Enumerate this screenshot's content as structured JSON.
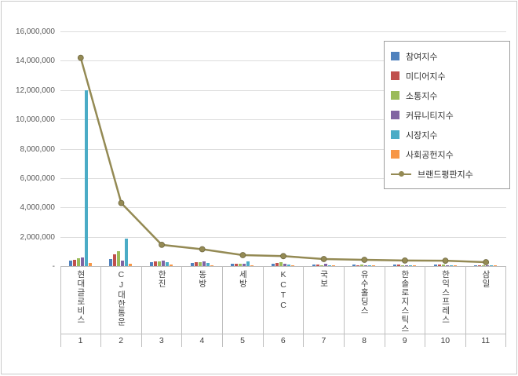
{
  "chart_data": {
    "type": "bar",
    "note": "combined clustered bar + line chart, Korean brand reputation index",
    "categories": [
      "현대글로비스",
      "CJ대한통운",
      "한진",
      "동방",
      "세방",
      "KCTC",
      "국보",
      "유수홀딩스",
      "한솔로지스틱스",
      "한익스프레스",
      "삼일"
    ],
    "ranks": [
      "1",
      "2",
      "3",
      "4",
      "5",
      "6",
      "7",
      "8",
      "9",
      "10",
      "11"
    ],
    "series": [
      {
        "name": "참여지수",
        "type": "bar",
        "color": "#4F81BD",
        "values": [
          350000,
          500000,
          250000,
          200000,
          150000,
          150000,
          100000,
          120000,
          100000,
          100000,
          80000
        ]
      },
      {
        "name": "미디어지수",
        "type": "bar",
        "color": "#C0504D",
        "values": [
          420000,
          820000,
          300000,
          250000,
          150000,
          200000,
          100000,
          80000,
          100000,
          120000,
          80000
        ]
      },
      {
        "name": "소통지수",
        "type": "bar",
        "color": "#9BBB59",
        "values": [
          520000,
          1000000,
          300000,
          250000,
          180000,
          250000,
          80000,
          100000,
          80000,
          100000,
          60000
        ]
      },
      {
        "name": "커뮤니티지수",
        "type": "bar",
        "color": "#8064A2",
        "values": [
          600000,
          400000,
          350000,
          300000,
          150000,
          180000,
          150000,
          80000,
          70000,
          80000,
          60000
        ]
      },
      {
        "name": "시장지수",
        "type": "bar",
        "color": "#4BACC6",
        "values": [
          12000000,
          1850000,
          250000,
          200000,
          300000,
          100000,
          50000,
          60000,
          50000,
          40000,
          30000
        ]
      },
      {
        "name": "사회공헌지수",
        "type": "bar",
        "color": "#F79646",
        "values": [
          230000,
          150000,
          100000,
          80000,
          60000,
          80000,
          40000,
          30000,
          30000,
          40000,
          20000
        ]
      },
      {
        "name": "브랜드평판지수",
        "type": "line",
        "color": "#948A54",
        "values": [
          14200000,
          4300000,
          1450000,
          1150000,
          750000,
          680000,
          480000,
          430000,
          380000,
          370000,
          270000
        ]
      }
    ],
    "ylim": [
      0,
      16000000
    ],
    "yticks": [
      {
        "label": "16,000,000",
        "value": 16000000
      },
      {
        "label": "14,000,000",
        "value": 14000000
      },
      {
        "label": "12,000,000",
        "value": 12000000
      },
      {
        "label": "10,000,000",
        "value": 10000000
      },
      {
        "label": "8,000,000",
        "value": 8000000
      },
      {
        "label": "6,000,000",
        "value": 6000000
      },
      {
        "label": "4,000,000",
        "value": 4000000
      },
      {
        "label": "2,000,000",
        "value": 2000000
      },
      {
        "label": "-",
        "value": 0
      }
    ],
    "grid": true,
    "legend_position": "top-right"
  }
}
